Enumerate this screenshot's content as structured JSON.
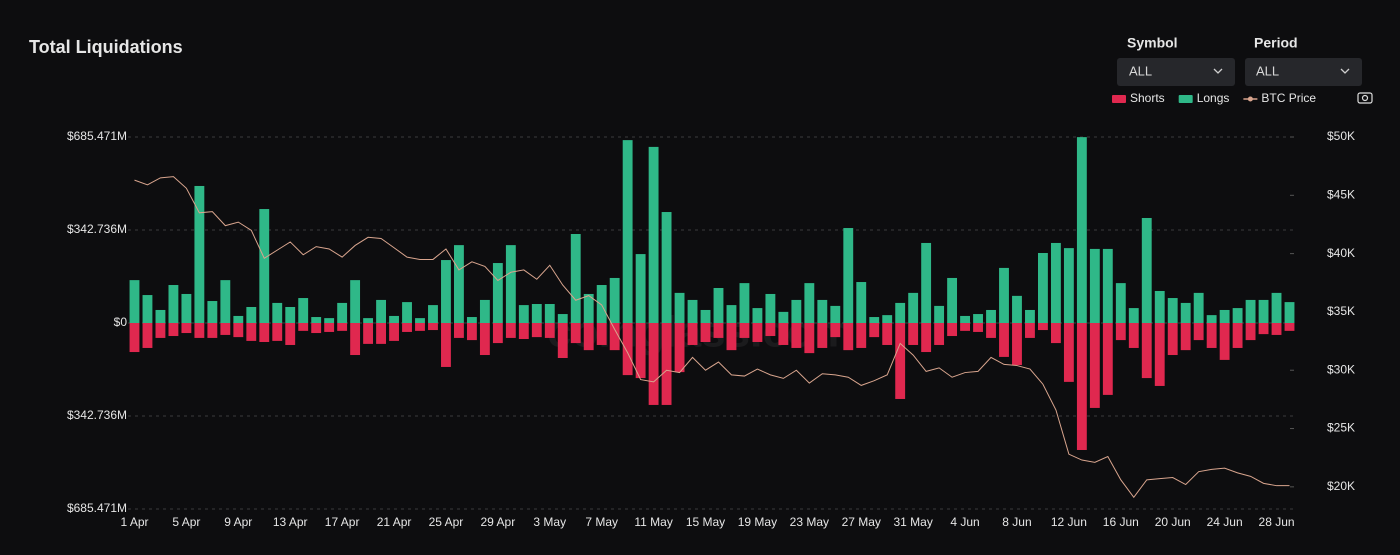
{
  "chart_data": {
    "type": "bar",
    "title": "Total Liquidations",
    "watermark": "coinglass.com",
    "controls": [
      {
        "label": "Symbol",
        "value": "ALL"
      },
      {
        "label": "Period",
        "value": "ALL"
      }
    ],
    "categories": [
      "1 Apr",
      null,
      null,
      null,
      "5 Apr",
      null,
      null,
      null,
      "9 Apr",
      null,
      null,
      null,
      "13 Apr",
      null,
      null,
      null,
      "17 Apr",
      null,
      null,
      null,
      "21 Apr",
      null,
      null,
      null,
      "25 Apr",
      null,
      null,
      null,
      "29 Apr",
      null,
      null,
      null,
      "3 May",
      null,
      null,
      null,
      "7 May",
      null,
      null,
      null,
      "11 May",
      null,
      null,
      null,
      "15 May",
      null,
      null,
      null,
      "19 May",
      null,
      null,
      null,
      "23 May",
      null,
      null,
      null,
      "27 May",
      null,
      null,
      null,
      "31 May",
      null,
      null,
      null,
      "4 Jun",
      null,
      null,
      null,
      "8 Jun",
      null,
      null,
      null,
      "12 Jun",
      null,
      null,
      null,
      "16 Jun",
      null,
      null,
      null,
      "20 Jun",
      null,
      null,
      null,
      "24 Jun",
      null,
      null,
      null,
      "28 Jun",
      null
    ],
    "series": [
      {
        "name": "Shorts",
        "type": "bar",
        "color": "#e0284f",
        "values": [
          -107,
          -92,
          -55,
          -48,
          -37,
          -55,
          -55,
          -44,
          -52,
          -66,
          -70,
          -66,
          -81,
          -29,
          -37,
          -33,
          -29,
          -118,
          -77,
          -77,
          -66,
          -33,
          -29,
          -26,
          -162,
          -55,
          -63,
          -118,
          -74,
          -55,
          -59,
          -52,
          -55,
          -129,
          -74,
          -100,
          -81,
          -100,
          -192,
          -203,
          -302,
          -302,
          -181,
          -81,
          -70,
          -55,
          -100,
          -55,
          -70,
          -48,
          -81,
          -92,
          -111,
          -92,
          -52,
          -100,
          -92,
          -52,
          -81,
          -280,
          -81,
          -107,
          -81,
          -48,
          -29,
          -33,
          -55,
          -125,
          -155,
          -55,
          -26,
          -74,
          -217,
          -468,
          -313,
          -265,
          -63,
          -92,
          -203,
          -232,
          -118,
          -100,
          -63,
          -92,
          -136,
          -92,
          -63,
          -41,
          -44,
          -29
        ]
      },
      {
        "name": "Longs",
        "type": "bar",
        "color": "#2fb888",
        "values": [
          158,
          103,
          48,
          140,
          107,
          505,
          81,
          158,
          26,
          59,
          420,
          74,
          59,
          92,
          22,
          18,
          74,
          158,
          18,
          85,
          26,
          77,
          18,
          66,
          232,
          287,
          22,
          85,
          221,
          287,
          66,
          70,
          70,
          33,
          328,
          107,
          140,
          166,
          674,
          254,
          649,
          409,
          111,
          85,
          48,
          129,
          66,
          147,
          55,
          107,
          41,
          85,
          147,
          85,
          63,
          350,
          151,
          22,
          29,
          74,
          111,
          295,
          63,
          166,
          26,
          33,
          48,
          203,
          100,
          48,
          258,
          295,
          276,
          685,
          273,
          273,
          147,
          55,
          387,
          118,
          92,
          74,
          111,
          29,
          48,
          55,
          85,
          85,
          111,
          77
        ]
      },
      {
        "name": "BTC Price",
        "type": "line",
        "axis": "y2",
        "color": "#d9a58e",
        "values": [
          46300,
          45900,
          46500,
          46600,
          45600,
          43500,
          43600,
          42400,
          42700,
          42000,
          39600,
          40300,
          41000,
          39900,
          40600,
          40400,
          39700,
          40700,
          41400,
          41300,
          40500,
          39700,
          39500,
          39500,
          40400,
          38600,
          39300,
          38900,
          37700,
          38400,
          38600,
          37800,
          39000,
          37300,
          36000,
          36400,
          35600,
          33500,
          31500,
          29200,
          29000,
          30000,
          29800,
          31100,
          30000,
          30700,
          29600,
          29500,
          30100,
          29600,
          29300,
          30000,
          28900,
          29700,
          29600,
          29400,
          28700,
          29100,
          29600,
          32300,
          31300,
          29900,
          30200,
          29400,
          29800,
          29900,
          31100,
          30500,
          30400,
          30100,
          28800,
          26600,
          22800,
          22300,
          22100,
          22600,
          20600,
          19100,
          20600,
          20700,
          20800,
          20200,
          21300,
          21500,
          21600,
          21200,
          20900,
          20300,
          20100,
          20100
        ]
      }
    ],
    "ylim": [
      -685.471,
      685.471
    ],
    "yticks": [
      {
        "value": 685.471,
        "label": "$685.471M"
      },
      {
        "value": 342.736,
        "label": "$342.736M"
      },
      {
        "value": 0,
        "label": "$0"
      },
      {
        "value": -342.736,
        "label": "$342.736M"
      },
      {
        "value": -685.471,
        "label": "$685.471M"
      }
    ],
    "y2lim": [
      18100,
      50000
    ],
    "y2ticks": [
      {
        "value": 50000,
        "label": "$50K"
      },
      {
        "value": 45000,
        "label": "$45K"
      },
      {
        "value": 40000,
        "label": "$40K"
      },
      {
        "value": 35000,
        "label": "$35K"
      },
      {
        "value": 30000,
        "label": "$30K"
      },
      {
        "value": 25000,
        "label": "$25K"
      },
      {
        "value": 20000,
        "label": "$20K"
      }
    ],
    "grid": true,
    "legend": "top-right"
  }
}
